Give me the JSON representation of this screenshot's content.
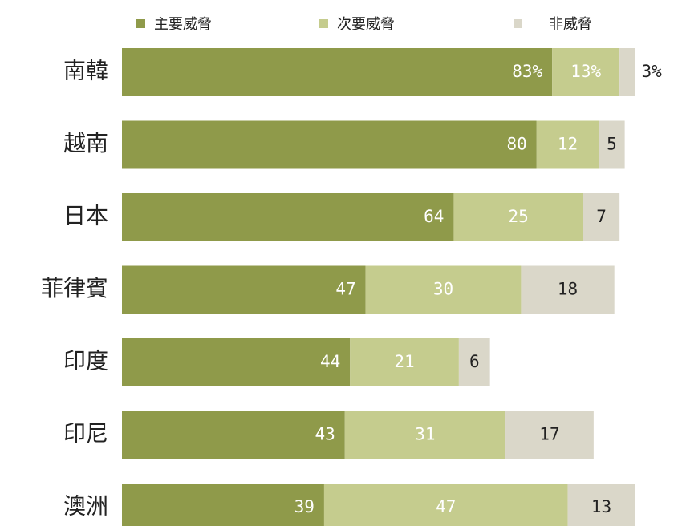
{
  "chart_data": {
    "type": "stacked-bar-horizontal",
    "categories": [
      "南韓",
      "越南",
      "日本",
      "菲律賓",
      "印度",
      "印尼",
      "澳洲"
    ],
    "series": [
      {
        "name": "主要威脅",
        "color": "#8f9a4a",
        "values": [
          83,
          80,
          64,
          47,
          44,
          43,
          39
        ],
        "value_labels": [
          "83%",
          "80",
          "64",
          "47",
          "44",
          "43",
          "39"
        ]
      },
      {
        "name": "次要威脅",
        "color": "#c5cc8e",
        "values": [
          13,
          12,
          25,
          30,
          21,
          31,
          47
        ],
        "value_labels": [
          "13%",
          "12",
          "25",
          "30",
          "21",
          "31",
          "47"
        ]
      },
      {
        "name": "非威脅",
        "color": "#dad7c9",
        "values": [
          3,
          5,
          7,
          18,
          6,
          17,
          13
        ],
        "value_labels": [
          "3%",
          "5",
          "7",
          "18",
          "6",
          "17",
          "13"
        ]
      }
    ],
    "legend": "top"
  }
}
